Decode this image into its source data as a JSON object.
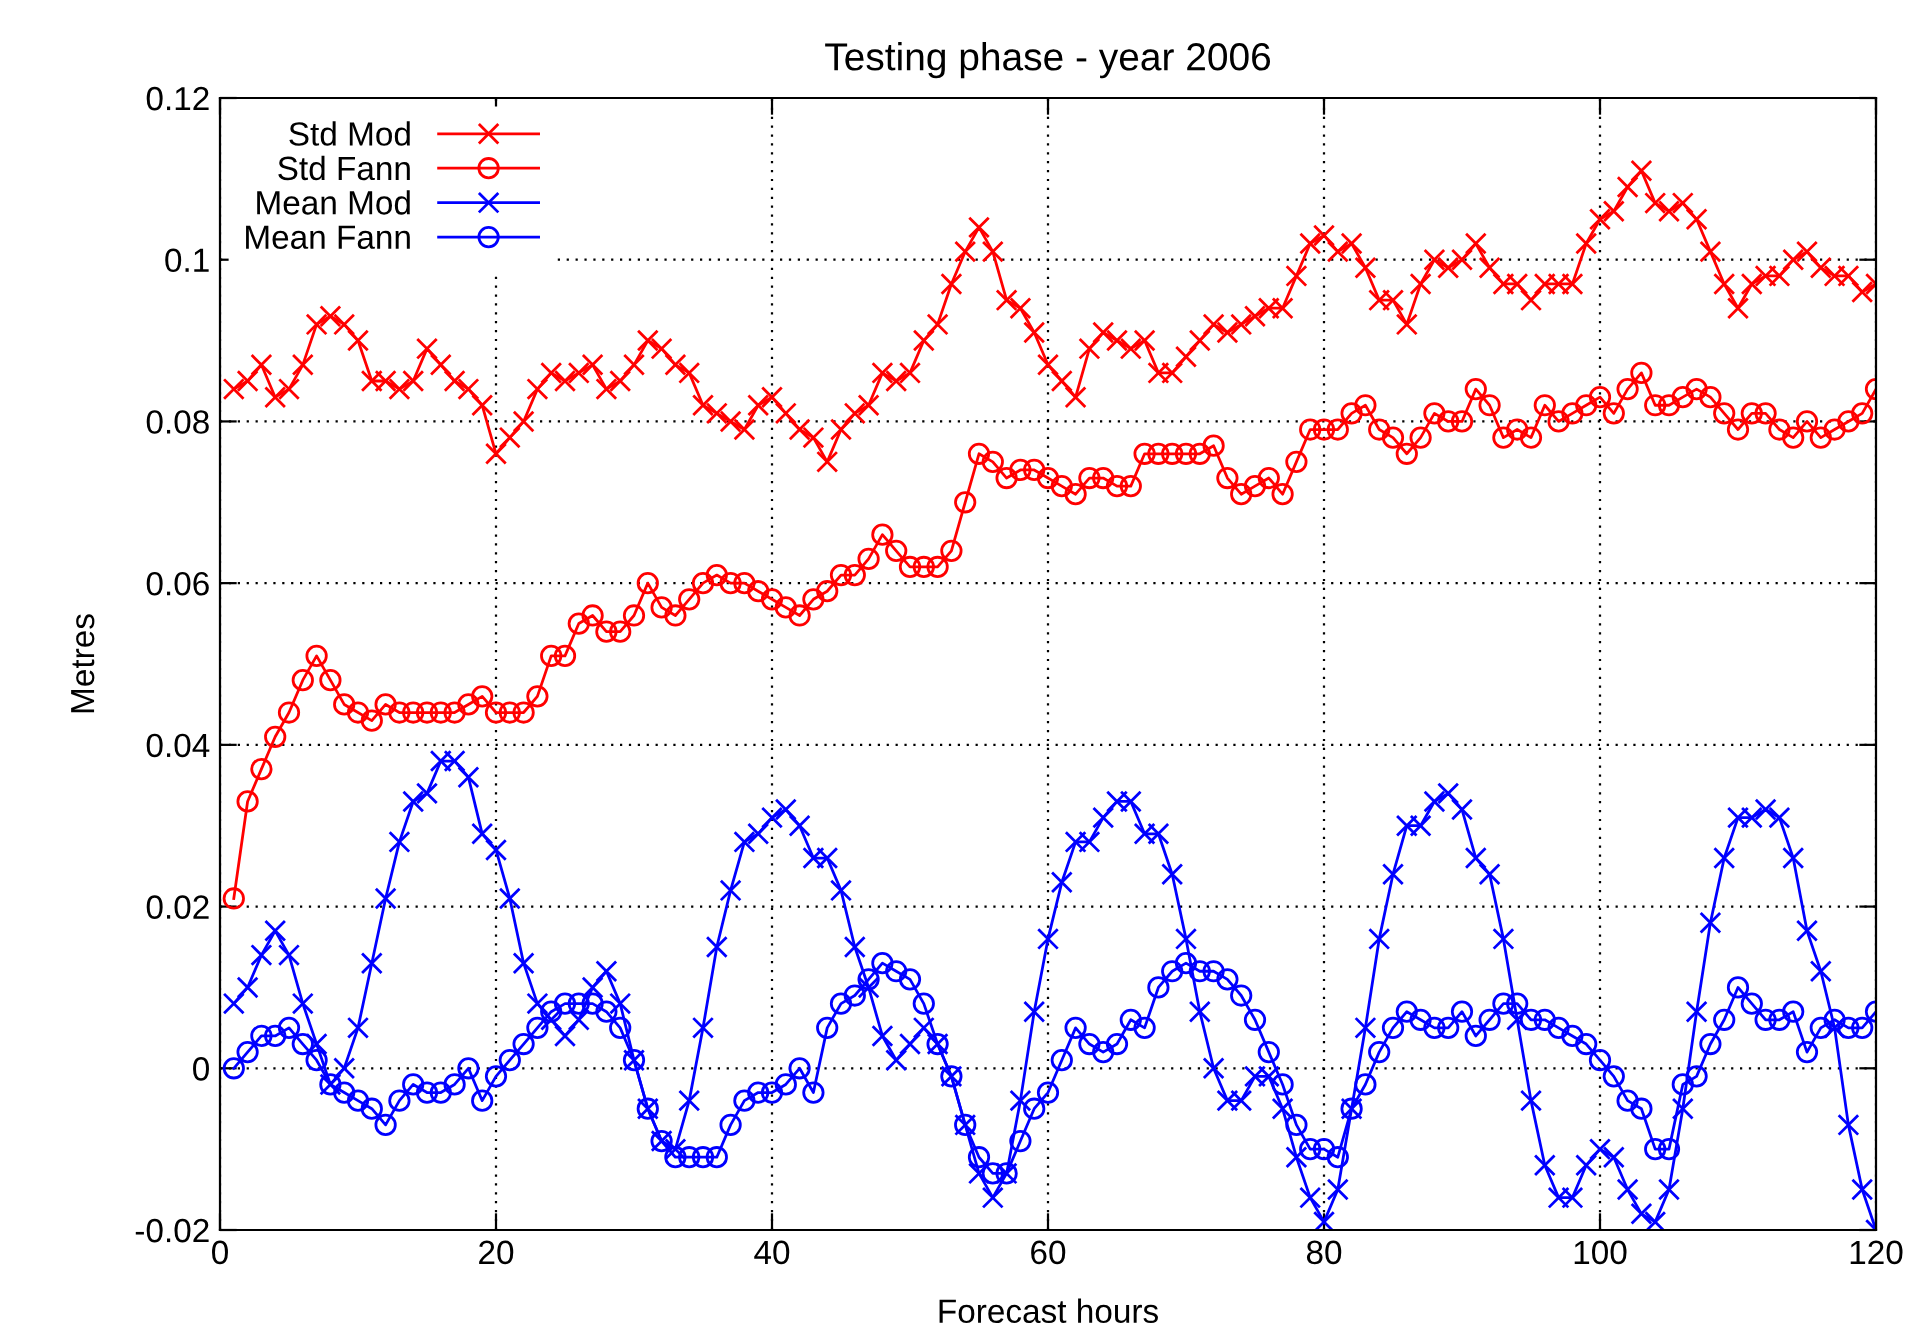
{
  "chart_data": {
    "type": "line",
    "title": "Testing phase - year 2006",
    "xlabel": "Forecast hours",
    "ylabel": "Metres",
    "x": [
      1,
      2,
      3,
      4,
      5,
      6,
      7,
      8,
      9,
      10,
      11,
      12,
      13,
      14,
      15,
      16,
      17,
      18,
      19,
      20,
      21,
      22,
      23,
      24,
      25,
      26,
      27,
      28,
      29,
      30,
      31,
      32,
      33,
      34,
      35,
      36,
      37,
      38,
      39,
      40,
      41,
      42,
      43,
      44,
      45,
      46,
      47,
      48,
      49,
      50,
      51,
      52,
      53,
      54,
      55,
      56,
      57,
      58,
      59,
      60,
      61,
      62,
      63,
      64,
      65,
      66,
      67,
      68,
      69,
      70,
      71,
      72,
      73,
      74,
      75,
      76,
      77,
      78,
      79,
      80,
      81,
      82,
      83,
      84,
      85,
      86,
      87,
      88,
      89,
      90,
      91,
      92,
      93,
      94,
      95,
      96,
      97,
      98,
      99,
      100,
      101,
      102,
      103,
      104,
      105,
      106,
      107,
      108,
      109,
      110,
      111,
      112,
      113,
      114,
      115,
      116,
      117,
      118,
      119,
      120
    ],
    "series": [
      {
        "name": "Std Mod",
        "color": "#ff0000",
        "marker": "cross",
        "values": [
          0.084,
          0.085,
          0.087,
          0.083,
          0.084,
          0.087,
          0.092,
          0.093,
          0.092,
          0.09,
          0.085,
          0.085,
          0.084,
          0.085,
          0.089,
          0.087,
          0.085,
          0.084,
          0.082,
          0.076,
          0.078,
          0.08,
          0.084,
          0.086,
          0.085,
          0.086,
          0.087,
          0.084,
          0.085,
          0.087,
          0.09,
          0.089,
          0.087,
          0.086,
          0.082,
          0.081,
          0.08,
          0.079,
          0.082,
          0.083,
          0.081,
          0.079,
          0.078,
          0.075,
          0.079,
          0.081,
          0.082,
          0.086,
          0.085,
          0.086,
          0.09,
          0.092,
          0.097,
          0.101,
          0.104,
          0.101,
          0.095,
          0.094,
          0.091,
          0.087,
          0.085,
          0.083,
          0.089,
          0.091,
          0.09,
          0.089,
          0.09,
          0.086,
          0.086,
          0.088,
          0.09,
          0.092,
          0.091,
          0.092,
          0.093,
          0.094,
          0.094,
          0.098,
          0.102,
          0.103,
          0.101,
          0.102,
          0.099,
          0.095,
          0.095,
          0.092,
          0.097,
          0.1,
          0.099,
          0.1,
          0.102,
          0.099,
          0.097,
          0.097,
          0.095,
          0.097,
          0.097,
          0.097,
          0.102,
          0.105,
          0.106,
          0.109,
          0.111,
          0.107,
          0.106,
          0.107,
          0.105,
          0.101,
          0.097,
          0.094,
          0.097,
          0.098,
          0.098,
          0.1,
          0.101,
          0.099,
          0.098,
          0.098,
          0.096,
          0.097
        ]
      },
      {
        "name": "Std Fann",
        "color": "#ff0000",
        "marker": "circle",
        "values": [
          0.021,
          0.033,
          0.037,
          0.041,
          0.044,
          0.048,
          0.051,
          0.048,
          0.045,
          0.044,
          0.043,
          0.045,
          0.044,
          0.044,
          0.044,
          0.044,
          0.044,
          0.045,
          0.046,
          0.044,
          0.044,
          0.044,
          0.046,
          0.051,
          0.051,
          0.055,
          0.056,
          0.054,
          0.054,
          0.056,
          0.06,
          0.057,
          0.056,
          0.058,
          0.06,
          0.061,
          0.06,
          0.06,
          0.059,
          0.058,
          0.057,
          0.056,
          0.058,
          0.059,
          0.061,
          0.061,
          0.063,
          0.066,
          0.064,
          0.062,
          0.062,
          0.062,
          0.064,
          0.07,
          0.076,
          0.075,
          0.073,
          0.074,
          0.074,
          0.073,
          0.072,
          0.071,
          0.073,
          0.073,
          0.072,
          0.072,
          0.076,
          0.076,
          0.076,
          0.076,
          0.076,
          0.077,
          0.073,
          0.071,
          0.072,
          0.073,
          0.071,
          0.075,
          0.079,
          0.079,
          0.079,
          0.081,
          0.082,
          0.079,
          0.078,
          0.076,
          0.078,
          0.081,
          0.08,
          0.08,
          0.084,
          0.082,
          0.078,
          0.079,
          0.078,
          0.082,
          0.08,
          0.081,
          0.082,
          0.083,
          0.081,
          0.084,
          0.086,
          0.082,
          0.082,
          0.083,
          0.084,
          0.083,
          0.081,
          0.079,
          0.081,
          0.081,
          0.079,
          0.078,
          0.08,
          0.078,
          0.079,
          0.08,
          0.081,
          0.084
        ]
      },
      {
        "name": "Mean Mod",
        "color": "#0000ff",
        "marker": "cross",
        "values": [
          0.008,
          0.01,
          0.014,
          0.017,
          0.014,
          0.008,
          0.003,
          -0.002,
          0.0,
          0.005,
          0.013,
          0.021,
          0.028,
          0.033,
          0.034,
          0.038,
          0.038,
          0.036,
          0.029,
          0.027,
          0.021,
          0.013,
          0.008,
          0.006,
          0.004,
          0.006,
          0.01,
          0.012,
          0.008,
          0.001,
          -0.005,
          -0.009,
          -0.01,
          -0.004,
          0.005,
          0.015,
          0.022,
          0.028,
          0.029,
          0.031,
          0.032,
          0.03,
          0.026,
          0.026,
          0.022,
          0.015,
          0.01,
          0.004,
          0.001,
          0.003,
          0.005,
          0.003,
          -0.001,
          -0.007,
          -0.013,
          -0.016,
          -0.013,
          -0.004,
          0.007,
          0.016,
          0.023,
          0.028,
          0.028,
          0.031,
          0.033,
          0.033,
          0.029,
          0.029,
          0.024,
          0.016,
          0.007,
          0.0,
          -0.004,
          -0.004,
          -0.001,
          -0.001,
          -0.005,
          -0.011,
          -0.016,
          -0.019,
          -0.015,
          -0.005,
          0.005,
          0.016,
          0.024,
          0.03,
          0.03,
          0.033,
          0.034,
          0.032,
          0.026,
          0.024,
          0.016,
          0.006,
          -0.004,
          -0.012,
          -0.016,
          -0.016,
          -0.012,
          -0.01,
          -0.011,
          -0.015,
          -0.018,
          -0.019,
          -0.015,
          -0.005,
          0.007,
          0.018,
          0.026,
          0.031,
          0.031,
          0.032,
          0.031,
          0.026,
          0.017,
          0.012,
          0.005,
          -0.007,
          -0.015,
          -0.02
        ]
      },
      {
        "name": "Mean Fann",
        "color": "#0000ff",
        "marker": "circle",
        "values": [
          0.0,
          0.002,
          0.004,
          0.004,
          0.005,
          0.003,
          0.001,
          -0.002,
          -0.003,
          -0.004,
          -0.005,
          -0.007,
          -0.004,
          -0.002,
          -0.003,
          -0.003,
          -0.002,
          0.0,
          -0.004,
          -0.001,
          0.001,
          0.003,
          0.005,
          0.007,
          0.008,
          0.008,
          0.008,
          0.007,
          0.005,
          0.001,
          -0.005,
          -0.009,
          -0.011,
          -0.011,
          -0.011,
          -0.011,
          -0.007,
          -0.004,
          -0.003,
          -0.003,
          -0.002,
          0.0,
          -0.003,
          0.005,
          0.008,
          0.009,
          0.011,
          0.013,
          0.012,
          0.011,
          0.008,
          0.003,
          -0.001,
          -0.007,
          -0.011,
          -0.013,
          -0.013,
          -0.009,
          -0.005,
          -0.003,
          0.001,
          0.005,
          0.003,
          0.002,
          0.003,
          0.006,
          0.005,
          0.01,
          0.012,
          0.013,
          0.012,
          0.012,
          0.011,
          0.009,
          0.006,
          0.002,
          -0.002,
          -0.007,
          -0.01,
          -0.01,
          -0.011,
          -0.005,
          -0.002,
          0.002,
          0.005,
          0.007,
          0.006,
          0.005,
          0.005,
          0.007,
          0.004,
          0.006,
          0.008,
          0.008,
          0.006,
          0.006,
          0.005,
          0.004,
          0.003,
          0.001,
          -0.001,
          -0.004,
          -0.005,
          -0.01,
          -0.01,
          -0.002,
          -0.001,
          0.003,
          0.006,
          0.01,
          0.008,
          0.006,
          0.006,
          0.007,
          0.002,
          0.005,
          0.006,
          0.005,
          0.005,
          0.007
        ]
      }
    ],
    "xlim": [
      0,
      120
    ],
    "xticks": [
      0,
      20,
      40,
      60,
      80,
      100,
      120
    ],
    "ylim": [
      -0.02,
      0.12
    ],
    "yticks": [
      -0.02,
      0,
      0.02,
      0.04,
      0.06,
      0.08,
      0.1,
      0.12
    ],
    "grid": true,
    "legend": "top left",
    "line_style": "solid"
  }
}
